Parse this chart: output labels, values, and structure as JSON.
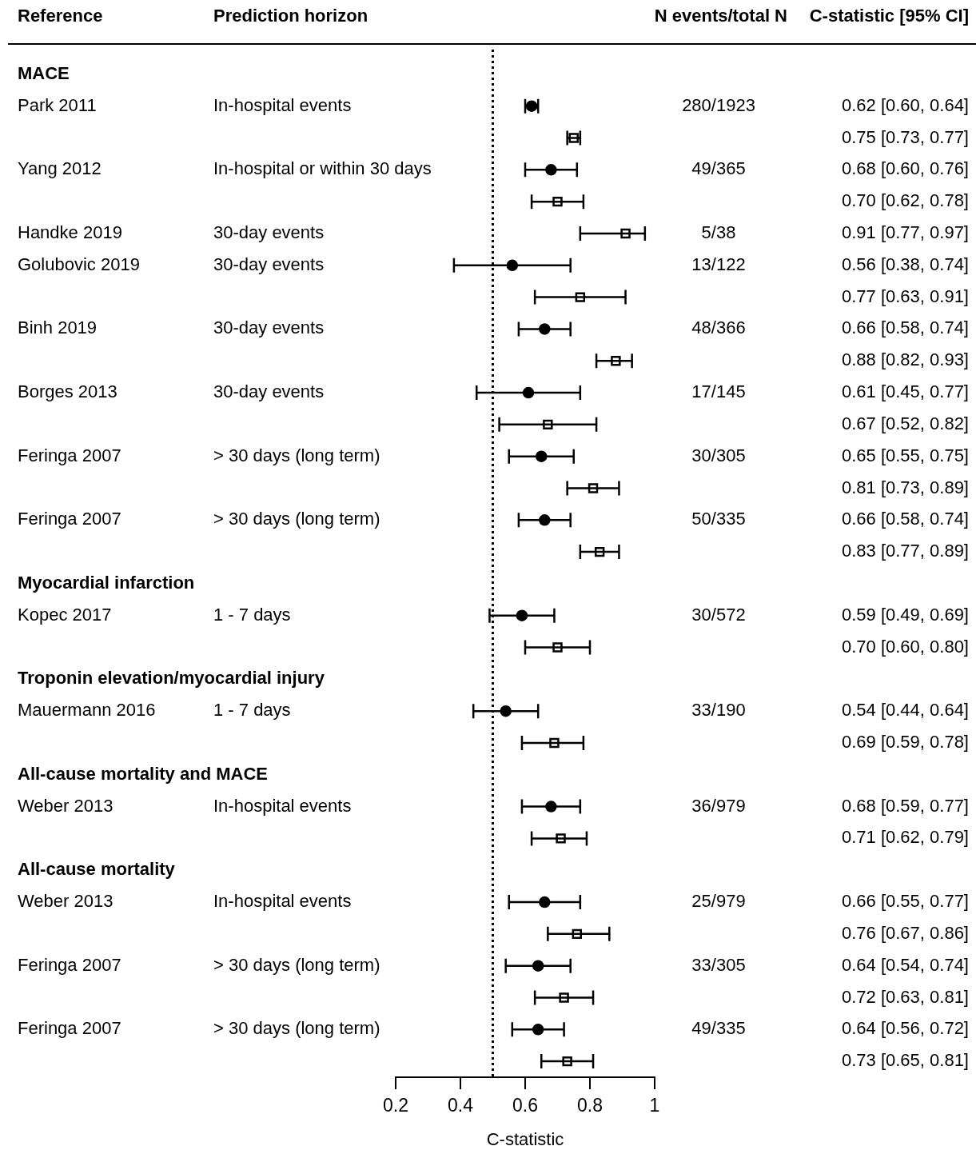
{
  "chart_data": {
    "type": "scatter",
    "orientation": "horizontal",
    "categories": [
      "MACE",
      "Park 2011",
      null,
      "Yang 2012",
      null,
      "Handke 2019",
      "Golubovic 2019",
      null,
      "Binh 2019",
      null,
      "Borges 2013",
      null,
      "Feringa 2007",
      null,
      "Feringa 2007",
      null,
      "Myocardial infarction",
      "Kopec 2017",
      null,
      "Troponin elevation/myocardial injury",
      "Mauermann 2016",
      null,
      "All-cause mortality and MACE",
      "Weber 2013",
      null,
      "All-cause mortality",
      "Weber 2013",
      null,
      "Feringa 2007",
      null,
      "Feringa 2007",
      null
    ],
    "series": [
      {
        "color": "#000000",
        "marker": "circle",
        "values": [
          null,
          0.62,
          null,
          0.68,
          null,
          null,
          0.56,
          null,
          0.66,
          null,
          0.61,
          null,
          0.65,
          null,
          0.66,
          null,
          null,
          0.59,
          null,
          null,
          0.54,
          null,
          null,
          0.68,
          null,
          null,
          0.66,
          null,
          0.64,
          null,
          0.64,
          null
        ],
        "errors": [
          null,
          [
            0.6,
            0.64
          ],
          null,
          [
            0.6,
            0.76
          ],
          null,
          null,
          [
            0.38,
            0.74
          ],
          null,
          [
            0.58,
            0.74
          ],
          null,
          [
            0.45,
            0.77
          ],
          null,
          [
            0.55,
            0.75
          ],
          null,
          [
            0.58,
            0.74
          ],
          null,
          null,
          [
            0.49,
            0.69
          ],
          null,
          null,
          [
            0.44,
            0.64
          ],
          null,
          null,
          [
            0.59,
            0.77
          ],
          null,
          null,
          [
            0.55,
            0.77
          ],
          null,
          [
            0.54,
            0.74
          ],
          null,
          [
            0.56,
            0.72
          ],
          null
        ]
      },
      {
        "color": "#000000",
        "marker": "square",
        "values": [
          null,
          null,
          0.75,
          null,
          0.7,
          0.91,
          null,
          0.77,
          null,
          0.88,
          null,
          0.67,
          null,
          0.81,
          null,
          0.83,
          null,
          null,
          0.7,
          null,
          null,
          0.69,
          null,
          null,
          0.71,
          null,
          null,
          0.76,
          null,
          0.72,
          null,
          0.73
        ],
        "errors": [
          null,
          null,
          [
            0.73,
            0.77
          ],
          null,
          [
            0.62,
            0.78
          ],
          [
            0.77,
            0.97
          ],
          null,
          [
            0.63,
            0.91
          ],
          null,
          [
            0.82,
            0.93
          ],
          null,
          [
            0.52,
            0.82
          ],
          null,
          [
            0.73,
            0.89
          ],
          null,
          [
            0.77,
            0.89
          ],
          null,
          null,
          [
            0.6,
            0.8
          ],
          null,
          null,
          [
            0.59,
            0.78
          ],
          null,
          null,
          [
            0.62,
            0.79
          ],
          null,
          null,
          [
            0.67,
            0.86
          ],
          null,
          [
            0.63,
            0.81
          ],
          null,
          [
            0.65,
            0.81
          ]
        ]
      }
    ],
    "xlim": [
      0.2,
      1
    ],
    "xticks": [
      0.2,
      0.4,
      0.6,
      0.8,
      1
    ],
    "xlabel": "C-statistic",
    "ref_lines": [
      {
        "axis": "x",
        "value": 0.5,
        "line_style": "dotted"
      }
    ],
    "annotations": [
      "Reference",
      "Prediction horizon",
      "N events/total N",
      "C-statistic [95% CI]",
      "In-hospital events",
      "280/1923",
      "In-hospital or within 30 days",
      "49/365",
      "30-day events",
      "5/38",
      "30-day events",
      "13/122",
      "30-day events",
      "48/366",
      "30-day events",
      "17/145",
      "> 30 days (long term)",
      "30/305",
      "> 30 days (long term)",
      "50/335",
      "1 - 7 days",
      "30/572",
      "1 - 7 days",
      "33/190",
      "In-hospital events",
      "36/979",
      "In-hospital events",
      "25/979",
      "> 30 days (long term)",
      "33/305",
      "> 30 days (long term)",
      "49/335",
      "0.62 [0.60, 0.64]",
      "0.75 [0.73, 0.77]",
      "0.68 [0.60, 0.76]",
      "0.70 [0.62, 0.78]",
      "0.91 [0.77, 0.97]",
      "0.56 [0.38, 0.74]",
      "0.77 [0.63, 0.91]",
      "0.66 [0.58, 0.74]",
      "0.88 [0.82, 0.93]",
      "0.61 [0.45, 0.77]",
      "0.67 [0.52, 0.82]",
      "0.65 [0.55, 0.75]",
      "0.81 [0.73, 0.89]",
      "0.66 [0.58, 0.74]",
      "0.83 [0.77, 0.89]",
      "0.59 [0.49, 0.69]",
      "0.70 [0.60, 0.80]",
      "0.54 [0.44, 0.64]",
      "0.69 [0.59, 0.78]",
      "0.68 [0.59, 0.77]",
      "0.71 [0.62, 0.79]",
      "0.66 [0.55, 0.77]",
      "0.76 [0.67, 0.86]",
      "0.64 [0.54, 0.74]",
      "0.72 [0.63, 0.81]",
      "0.64 [0.56, 0.72]",
      "0.73 [0.65, 0.81]"
    ]
  }
}
